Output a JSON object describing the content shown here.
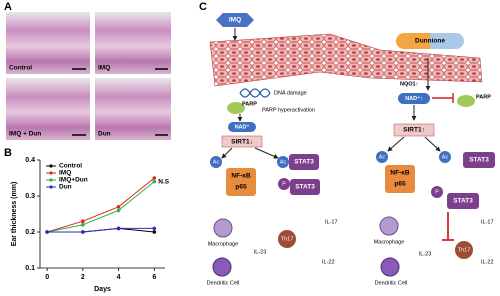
{
  "panels": {
    "a": {
      "label": "A",
      "images": [
        "Control",
        "IMQ",
        "IMQ + Dun",
        "Dun"
      ]
    },
    "b": {
      "label": "B"
    },
    "c": {
      "label": "C"
    }
  },
  "chart_data": {
    "type": "line",
    "x_label": "Days",
    "y_label": "Ear thickness (mm)",
    "annotation": "N.S",
    "x": [
      0,
      2,
      4,
      6
    ],
    "xlim": [
      -0.4,
      6.6
    ],
    "xticks": [
      0,
      2,
      4,
      6
    ],
    "ylim": [
      0.1,
      0.4
    ],
    "yticks": [
      0.1,
      0.2,
      0.3,
      0.4
    ],
    "series": [
      {
        "name": "Control",
        "color": "#000000",
        "values": [
          0.2,
          0.2,
          0.21,
          0.2
        ]
      },
      {
        "name": "IMQ",
        "color": "#e8231f",
        "values": [
          0.2,
          0.23,
          0.27,
          0.35
        ]
      },
      {
        "name": "IMQ+Dun",
        "color": "#2bb34a",
        "values": [
          0.2,
          0.22,
          0.26,
          0.34
        ]
      },
      {
        "name": "Dun",
        "color": "#2a2fb8",
        "values": [
          0.2,
          0.2,
          0.21,
          0.21
        ]
      }
    ]
  },
  "diagram": {
    "imq": "IMQ",
    "dunnione": "Dunnione",
    "left": {
      "dna": "DNA damage",
      "parp": "PARP",
      "parp_note": "PARP hyperactivation",
      "nad": "NAD⁺",
      "sirt1": "SIRT1↓",
      "ac1": "Ac",
      "nfkb": [
        "NF-κB",
        "p65"
      ],
      "ac2": "Ac",
      "stat3a": "STAT3",
      "p": "P",
      "stat3b": "STAT3",
      "macrophage": "Macrophage",
      "dc": "Dendritic Cell",
      "il23": "IL-23",
      "th17": "Th17",
      "il17": "IL-17",
      "il22": "IL-22"
    },
    "right": {
      "nqo1": "NQO1↑",
      "nad": "NAD⁺↑",
      "parp": "PARP",
      "sirt1": "SIRT1↑",
      "ac1": "Ac",
      "nfkb": [
        "NF-κB",
        "p65"
      ],
      "ac2": "Ac",
      "stat3a": "STAT3",
      "p": "P",
      "stat3b": "STAT3",
      "macrophage": "Macrophage",
      "dc": "Dendritic Cell",
      "il23": "IL-23",
      "th17": "Th17",
      "il17": "IL-17",
      "il22": "IL-22"
    }
  }
}
